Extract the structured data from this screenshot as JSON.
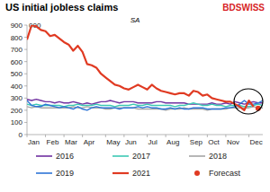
{
  "chart_data": {
    "type": "line",
    "title": "US initial jobless claims",
    "subtitle": "SA",
    "brand": "BDSWISS",
    "annotations": [
      "000"
    ],
    "categories": [
      "Jan",
      null,
      null,
      null,
      "Feb",
      null,
      null,
      null,
      "Mar",
      null,
      null,
      null,
      "Apr",
      null,
      null,
      null,
      null,
      "May",
      null,
      null,
      null,
      "Jun",
      null,
      null,
      null,
      null,
      "Jul",
      null,
      null,
      null,
      "Aug",
      null,
      null,
      null,
      null,
      "Sep",
      null,
      null,
      null,
      "Oct",
      null,
      null,
      null,
      "Nov",
      null,
      null,
      null,
      null,
      "Dec",
      null,
      null,
      null
    ],
    "ylim": [
      0,
      900
    ],
    "yticks": [
      0,
      100,
      200,
      300,
      400,
      500,
      600,
      700,
      800,
      900
    ],
    "grid": false,
    "legend": "bottom",
    "series": [
      {
        "name": "2016",
        "color": "#7030a0",
        "line_style": "solid",
        "values": [
          290,
          280,
          290,
          280,
          270,
          270,
          260,
          270,
          260,
          260,
          270,
          260,
          250,
          260,
          250,
          260,
          270,
          270,
          280,
          270,
          260,
          270,
          270,
          270,
          260,
          260,
          260,
          260,
          270,
          270,
          260,
          260,
          260,
          260,
          260,
          250,
          250,
          250,
          250,
          250,
          260,
          250,
          250,
          260,
          250,
          270,
          260,
          250,
          260,
          270,
          260,
          260
        ]
      },
      {
        "name": "2017",
        "color": "#3cc8b4",
        "line_style": "solid",
        "values": [
          250,
          240,
          250,
          240,
          240,
          240,
          240,
          240,
          230,
          240,
          240,
          250,
          240,
          240,
          240,
          250,
          240,
          240,
          240,
          230,
          240,
          240,
          240,
          250,
          240,
          240,
          250,
          240,
          240,
          240,
          240,
          240,
          230,
          240,
          240,
          250,
          260,
          250,
          240,
          240,
          250,
          240,
          240,
          230,
          240,
          240,
          240,
          230,
          230,
          240,
          250,
          240
        ]
      },
      {
        "name": "2018",
        "color": "#a6a6a6",
        "line_style": "solid",
        "values": [
          230,
          220,
          230,
          220,
          220,
          220,
          220,
          220,
          220,
          220,
          230,
          220,
          220,
          230,
          220,
          220,
          220,
          210,
          210,
          220,
          220,
          220,
          220,
          220,
          210,
          210,
          210,
          210,
          210,
          210,
          200,
          210,
          210,
          210,
          220,
          210,
          210,
          210,
          210,
          200,
          210,
          210,
          210,
          210,
          220,
          220,
          220,
          220,
          220,
          230,
          220,
          220
        ]
      },
      {
        "name": "2019",
        "color": "#2e75d6",
        "line_style": "solid",
        "values": [
          280,
          240,
          230,
          230,
          250,
          240,
          230,
          220,
          230,
          220,
          210,
          230,
          210,
          200,
          220,
          230,
          220,
          220,
          220,
          220,
          210,
          220,
          220,
          220,
          230,
          220,
          230,
          220,
          220,
          210,
          210,
          220,
          210,
          220,
          210,
          210,
          220,
          220,
          220,
          210,
          210,
          210,
          210,
          220,
          220,
          230,
          250,
          280,
          250,
          250,
          260,
          280
        ]
      },
      {
        "name": "2021",
        "color": "#e03a22",
        "line_style": "solid",
        "values": [
          780,
          900,
          890,
          860,
          850,
          810,
          820,
          790,
          760,
          740,
          690,
          730,
          680,
          580,
          570,
          550,
          500,
          470,
          440,
          410,
          400,
          380,
          370,
          390,
          410,
          390,
          370,
          410,
          380,
          360,
          350,
          340,
          330,
          340,
          340,
          320,
          360,
          350,
          320,
          330,
          300,
          290,
          280,
          270,
          270,
          250,
          230,
          200,
          280,
          230,
          null,
          null
        ]
      },
      {
        "name": "Forecast",
        "color": "#e03a22",
        "line_style": "none",
        "marker": "circle",
        "values": [
          null,
          null,
          null,
          null,
          null,
          null,
          null,
          null,
          null,
          null,
          null,
          null,
          null,
          null,
          null,
          null,
          null,
          null,
          null,
          null,
          null,
          null,
          null,
          null,
          null,
          null,
          null,
          null,
          null,
          null,
          null,
          null,
          null,
          null,
          null,
          null,
          null,
          null,
          null,
          null,
          null,
          null,
          null,
          null,
          null,
          null,
          null,
          null,
          null,
          null,
          215,
          null
        ]
      }
    ]
  }
}
